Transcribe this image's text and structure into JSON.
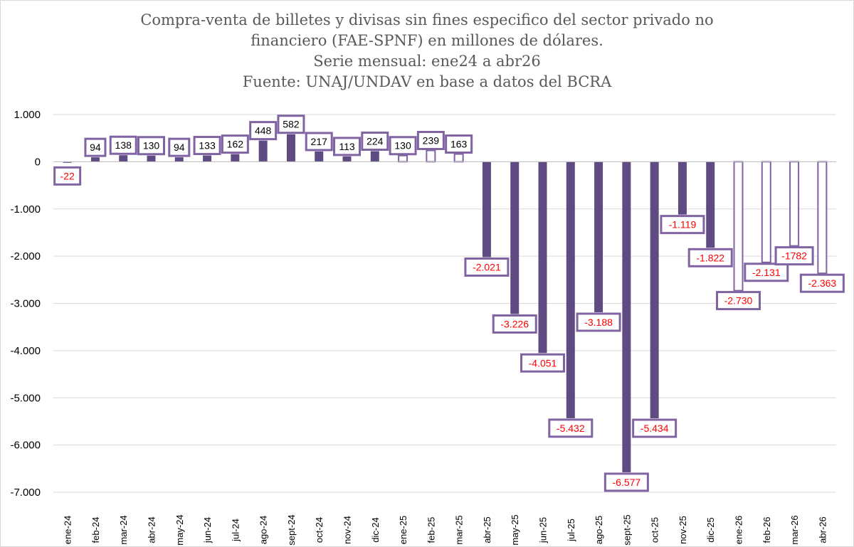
{
  "chart_data": {
    "type": "bar",
    "title_lines": [
      "Compra-venta de billetes y divisas sin fines especifico del sector privado no",
      "financiero (FAE-SPNF) en millones de dólares.",
      "Serie mensual: ene24 a abr26",
      "Fuente: UNAJ/UNDAV en base a datos del BCRA"
    ],
    "categories": [
      "ene-24",
      "feb-24",
      "mar-24",
      "abr-24",
      "may-24",
      "jun-24",
      "jul-24",
      "ago-24",
      "sept-24",
      "oct-24",
      "nov-24",
      "dic-24",
      "ene-25",
      "feb-25",
      "mar-25",
      "abr-25",
      "may-25",
      "jun-25",
      "jul-25",
      "ago-25",
      "sept-25",
      "oct-25",
      "nov-25",
      "dic-25",
      "ene-26",
      "feb-26",
      "mar-26",
      "abr-26"
    ],
    "values": [
      -22,
      94,
      138,
      130,
      94,
      133,
      162,
      448,
      582,
      217,
      113,
      224,
      130,
      239,
      163,
      -2021,
      -3226,
      -4051,
      -5432,
      -3188,
      -6577,
      -5434,
      -1119,
      -1822,
      -2730,
      -2131,
      -1782,
      -2363
    ],
    "data_labels": [
      "-22",
      "94",
      "138",
      "130",
      "94",
      "133",
      "162",
      "448",
      "582",
      "217",
      "113",
      "224",
      "130",
      "239",
      "163",
      "-2.021",
      "-3.226",
      "-4.051",
      "-5.432",
      "-3.188",
      "-6.577",
      "-5.434",
      "-1.119",
      "-1.822",
      "-2.730",
      "-2.131",
      "-1782",
      "-2.363"
    ],
    "bar_style": [
      "filled",
      "filled",
      "filled",
      "filled",
      "filled",
      "filled",
      "filled",
      "filled",
      "filled",
      "filled",
      "filled",
      "filled",
      "outline",
      "outline",
      "outline",
      "filled",
      "filled",
      "filled",
      "filled",
      "filled",
      "filled",
      "filled",
      "filled",
      "filled",
      "outline",
      "outline",
      "outline",
      "outline"
    ],
    "ylim": [
      -7000,
      1000
    ],
    "yticks": [
      1000,
      0,
      -1000,
      -2000,
      -3000,
      -4000,
      -5000,
      -6000,
      -7000
    ],
    "ytick_labels": [
      "1.000",
      "0",
      "-1.000",
      "-2.000",
      "-3.000",
      "-4.000",
      "-5.000",
      "-6.000",
      "-7.000"
    ],
    "grid": "horizontal",
    "colors": {
      "bar": "#5f4b82",
      "label_border": "#8064a2",
      "positive_text": "#000000",
      "negative_text": "#ff0000",
      "grid": "#d9d9d9",
      "title": "#595959"
    }
  }
}
